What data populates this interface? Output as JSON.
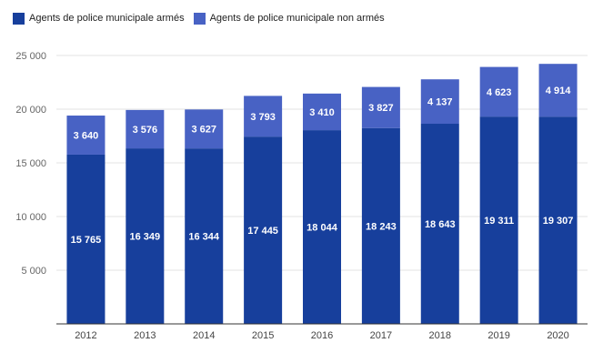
{
  "chart_data": {
    "type": "bar",
    "stacked": true,
    "categories": [
      "2012",
      "2013",
      "2014",
      "2015",
      "2016",
      "2017",
      "2018",
      "2019",
      "2020"
    ],
    "series": [
      {
        "name": "Agents de police municipale armés",
        "color": "#173f9c",
        "values": [
          15765,
          16349,
          16344,
          17445,
          18044,
          18243,
          18643,
          19311,
          19307
        ],
        "labels": [
          "15 765",
          "16 349",
          "16 344",
          "17 445",
          "18 044",
          "18 243",
          "18 643",
          "19 311",
          "19 307"
        ]
      },
      {
        "name": "Agents de police municipale non armés",
        "color": "#4862c4",
        "values": [
          3640,
          3576,
          3627,
          3793,
          3410,
          3827,
          4137,
          4623,
          4914
        ],
        "labels": [
          "3 640",
          "3 576",
          "3 627",
          "3 793",
          "3 410",
          "3 827",
          "4 137",
          "4 623",
          "4 914"
        ]
      }
    ],
    "ylim": [
      0,
      25000
    ],
    "yticks": [
      5000,
      10000,
      15000,
      20000,
      25000
    ],
    "ytick_labels": [
      "5 000",
      "10 000",
      "15 000",
      "20 000",
      "25 000"
    ],
    "title": "",
    "xlabel": "",
    "ylabel": "",
    "grid": true,
    "legend_position": "top-left"
  }
}
